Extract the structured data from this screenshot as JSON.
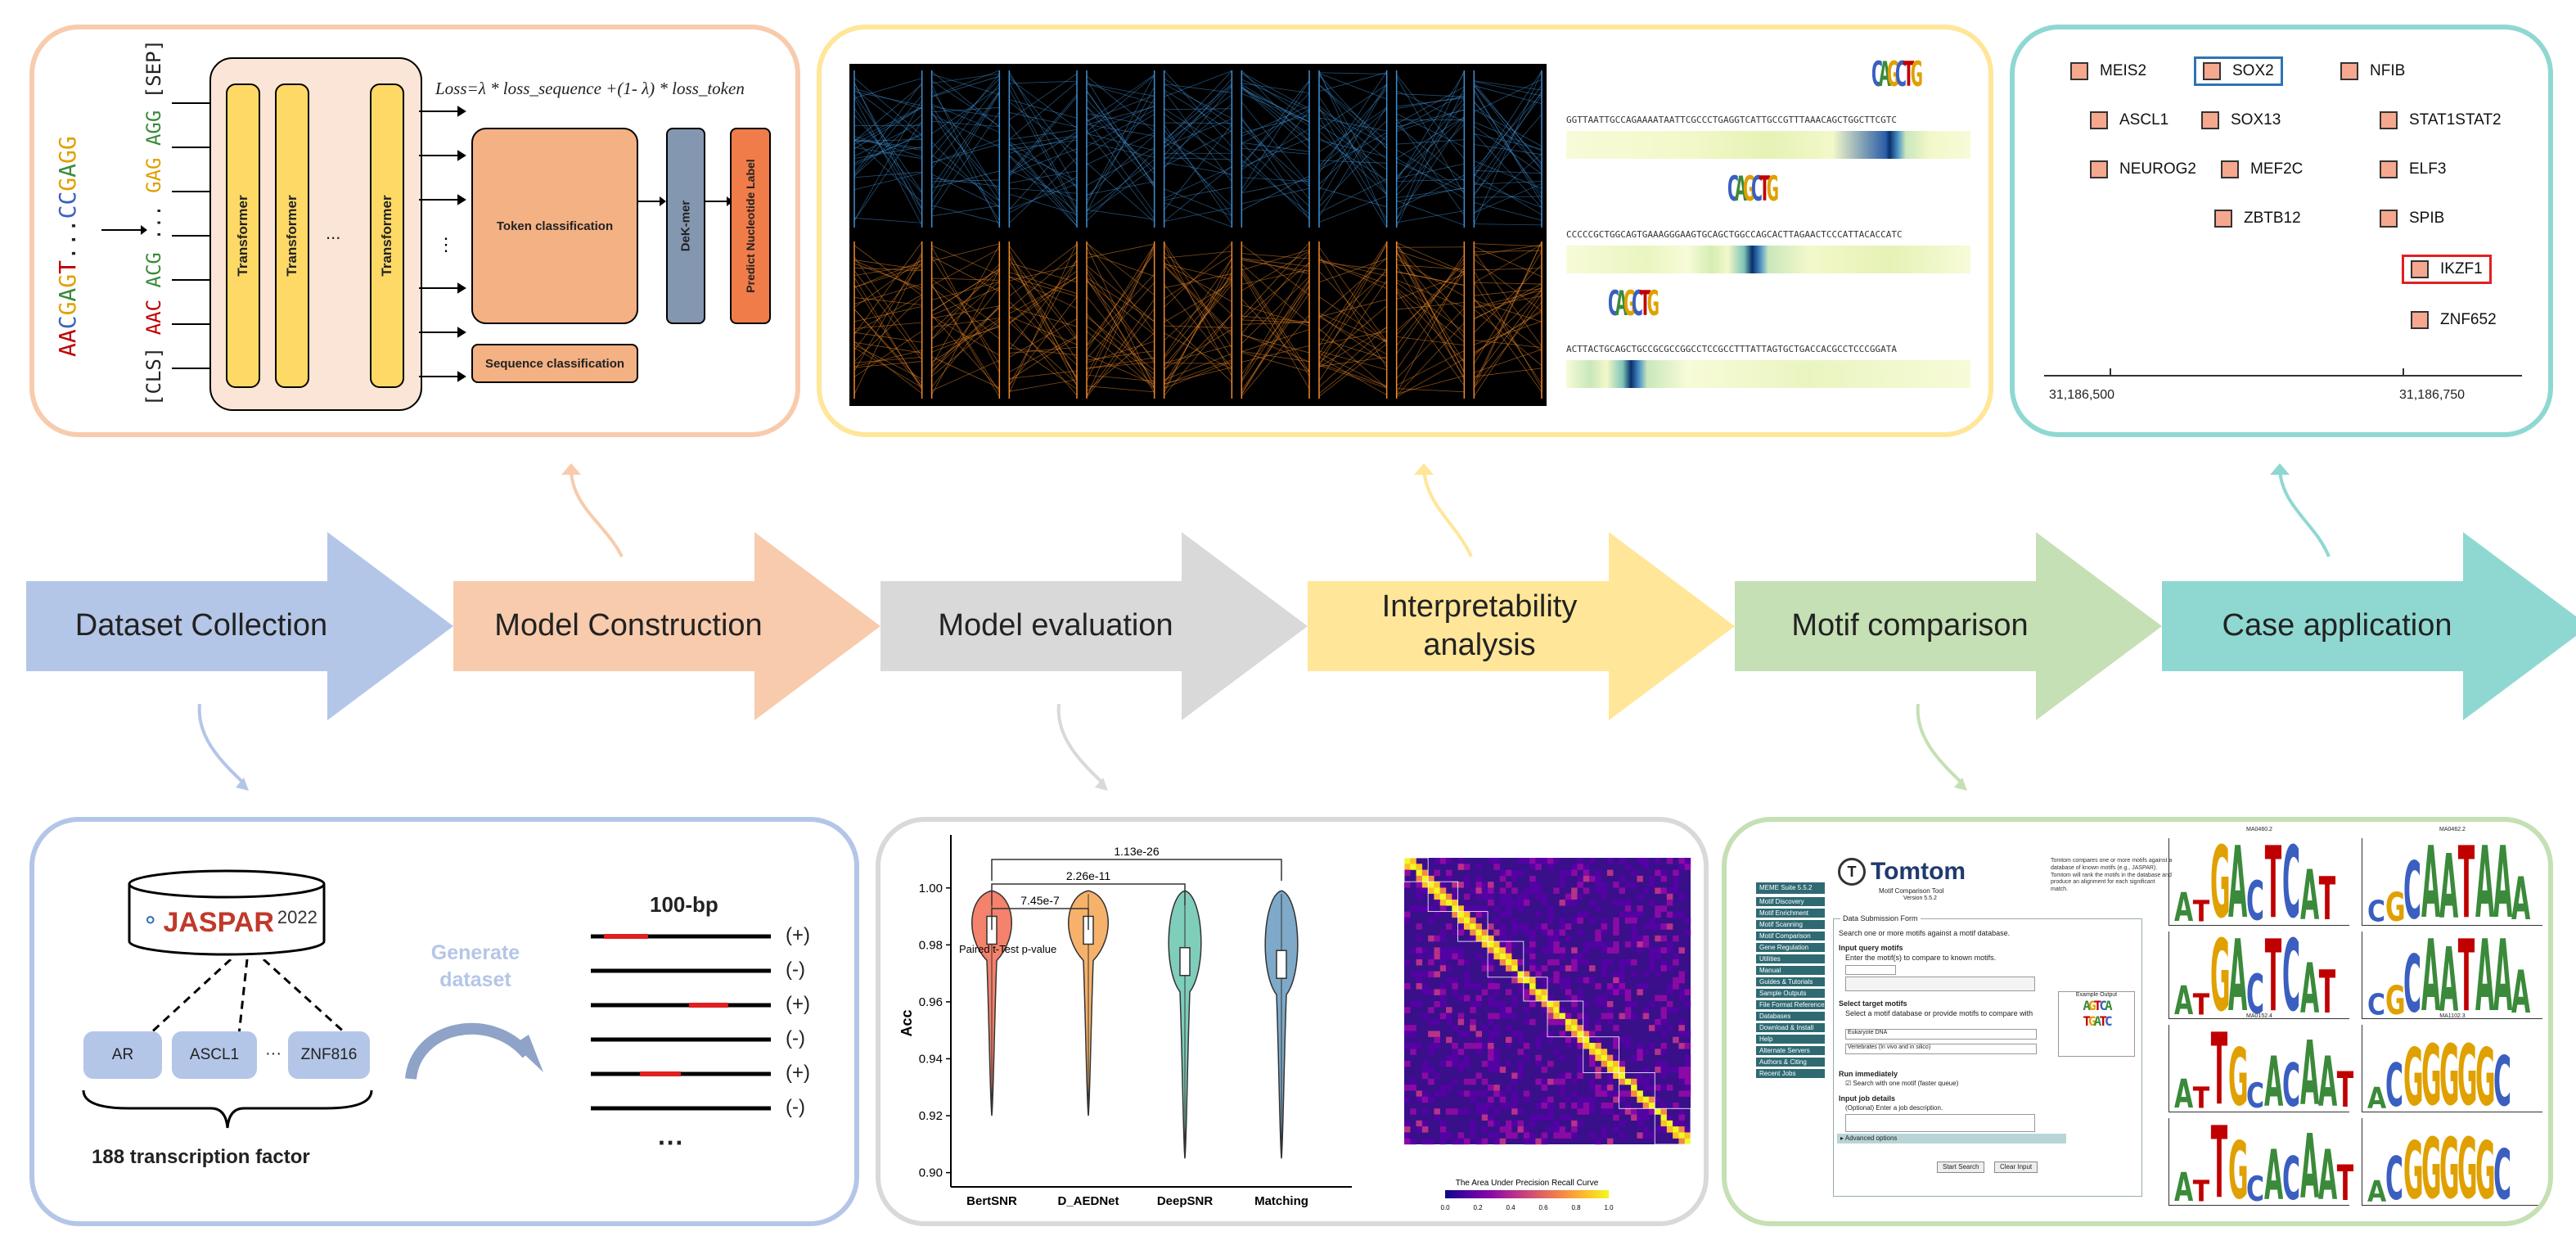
{
  "flow": {
    "steps": [
      {
        "label": "Dataset Collection",
        "color": "#b4c6e7"
      },
      {
        "label": "Model Construction",
        "color": "#f8cbad"
      },
      {
        "label": "Model evaluation",
        "color": "#d9d9d9"
      },
      {
        "label": "Interpretability analysis",
        "color": "#ffe699"
      },
      {
        "label": "Motif comparison",
        "color": "#c5e0b4"
      },
      {
        "label": "Case application",
        "color": "#8fd8d2"
      }
    ]
  },
  "model": {
    "sequence_top": "AACGAGT...CCGAGG",
    "sep_token": "[SEP]",
    "cls_token": "[CLS]",
    "kmers": [
      "AAC",
      "ACG",
      "...",
      "GAG",
      "AGG"
    ],
    "transformer_label": "Transformer",
    "ellipsis": "...",
    "loss": "Loss=λ * loss_sequence +(1- λ) * loss_token",
    "token_classification": "Token classification",
    "sequence_classification": "Sequence classification",
    "dekmer": "DeK-mer",
    "predict_label": "Predict Nucleotide Label"
  },
  "interpretability": {
    "seq1": "GGTTAATTGCCAGAAAATAATTCGCCCTGAGGTCATTGCCGTTTAAACAGCTGGCTTCGTC",
    "seq2": "CCCCCGCTGGCAGTGAAAGGGAAGTGCAGCTGGCCAGCACTTAGAACTCCCATTACACCATC",
    "seq3": "ACTTACTGCAGCTGCCGCGCCGGCCTCCGCCTTTATTAGTGCTGACCACGCCTCCCGGATA",
    "motif1": "CAGCTG",
    "motif2": "CAGCTG",
    "motif3": "CAGCTG"
  },
  "case": {
    "genes": [
      "MEIS2",
      "SOX2",
      "NFIB",
      "ASCL1",
      "SOX13",
      "STAT1STAT2",
      "NEUROG2",
      "MEF2C",
      "ELF3",
      "ZBTB12",
      "SPIB",
      "IKZF1",
      "ZNF652"
    ],
    "tick1": "31,186,500",
    "tick2": "31,186,750",
    "highlight_blue": "SOX2",
    "highlight_red": "IKZF1"
  },
  "dataset": {
    "db_name": "JASPAR",
    "db_year": "2022",
    "tfs": [
      "AR",
      "ASCL1",
      "···",
      "ZNF816"
    ],
    "tf_count": "188 transcription factor",
    "generate": "Generate dataset",
    "length": "100-bp",
    "labels": [
      "(+)",
      "(-)",
      "(+)",
      "(-)",
      "(+)",
      "(-)"
    ],
    "more": "···"
  },
  "chart_data": {
    "type": "violin",
    "categories": [
      "BertSNR",
      "D_AEDNet",
      "DeepSNR",
      "Matching"
    ],
    "medians": [
      0.986,
      0.986,
      0.975,
      0.974
    ],
    "ylabel": "Acc",
    "ylim": [
      0.895,
      1.01
    ],
    "yticks": [
      "0.90",
      "0.92",
      "0.94",
      "0.96",
      "0.98",
      "1.00"
    ],
    "colors": [
      "#f4826c",
      "#f6b26b",
      "#7fcdbb",
      "#7ea9c9"
    ],
    "test_label": "Paired t-Test p-value",
    "pvalues": [
      "7.45e-7",
      "2.26e-11",
      "1.13e-26"
    ],
    "heatmap_legend": "The Area Under Precision Recall Curve",
    "heatmap_ticks": [
      "0.0",
      "0.2",
      "0.4",
      "0.6",
      "0.8",
      "1.0"
    ]
  },
  "tomtom": {
    "title": "Tomtom",
    "subtitle": "Motif Comparison Tool",
    "version": "Version 5.5.2",
    "intro": "Tomtom compares one or more motifs against a database of known motifs (e.g., JASPAR). Tomtom will rank the motifs in the database and produce an alignment for each significant match.",
    "suite": "MEME Suite 5.5.2",
    "nav": [
      "Motif Discovery",
      "Motif Enrichment",
      "Motif Scanning",
      "Motif Comparison",
      "Gene Regulation",
      "Utilities",
      "Manual",
      "Guides & Tutorials",
      "Sample Outputs",
      "File Format Reference",
      "Databases",
      "Download & Install",
      "Help",
      "Alternate Servers",
      "Authors & Citing",
      "Recent Jobs"
    ],
    "form_title": "Data Submission Form",
    "form_desc": "Search one or more motifs against a motif database.",
    "query": "Input query motifs",
    "query_desc": "Enter the motif(s) to compare to known motifs.",
    "target": "Select target motifs",
    "target_desc": "Select a motif database or provide motifs to compare with",
    "db_value": "Eukaryote DNA",
    "db2_value": "Vertebrates (In vivo and in silico)",
    "run": "Run immediately",
    "run_opt": "Search with one motif (faster queue)",
    "job": "Input job details",
    "job_desc": "(Optional) Enter a job description.",
    "advanced": "Advanced options",
    "start": "Start Search",
    "clear": "Clear Input",
    "example": "Example Output",
    "logo_titles": [
      "MA0460.2",
      "MA0462.2",
      "MA0152.4",
      "MA1102.3"
    ]
  }
}
